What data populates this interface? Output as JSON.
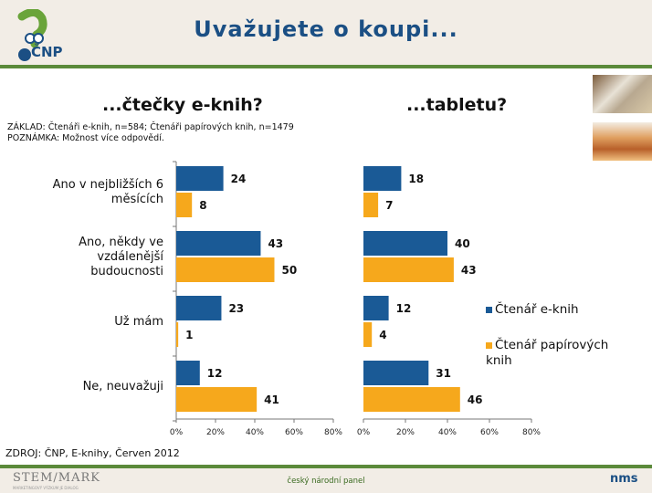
{
  "header": {
    "title": "Uvažujete o koupi...",
    "logo_text": "ČNP"
  },
  "notes": {
    "base": "ZÁKLAD: Čtenáři e-knih, n=584; Čtenáři papírových knih, n=1479",
    "remark": "POZNÁMKA: Možnost více odpovědí."
  },
  "source": "ZDROJ: ČNP, E-knihy, Červen 2012",
  "footer": {
    "left_logo": "STEM/MARK",
    "left_logo_sub": "MARKETINGOVÝ VÝZKUM JE DIALOG",
    "center": "český národní panel",
    "right_logo": "nms"
  },
  "colors": {
    "e_reader": "#1a5a96",
    "paper": "#f6a81c",
    "accent": "#5b8a3a",
    "header_bg": "#f2ede6"
  },
  "chart_data": [
    {
      "type": "bar",
      "orientation": "horizontal",
      "title": "...čtečky e-knih?",
      "categories": [
        "Ano v nejbližších 6 měsících",
        "Ano, někdy ve vzdálenější budoucnosti",
        "Už mám",
        "Ne, neuvažuji"
      ],
      "series": [
        {
          "name": "Čtenář e-knih",
          "values": [
            24,
            43,
            23,
            12
          ]
        },
        {
          "name": "Čtenář papírových knih",
          "values": [
            8,
            50,
            1,
            41
          ]
        }
      ],
      "xlim": [
        0,
        80
      ],
      "xticks": [
        "0%",
        "20%",
        "40%",
        "60%",
        "80%"
      ],
      "grid": false
    },
    {
      "type": "bar",
      "orientation": "horizontal",
      "title": "...tabletu?",
      "categories": [
        "Ano v nejbližších 6 měsících",
        "Ano, někdy ve vzdálenější budoucnosti",
        "Už mám",
        "Ne, neuvažuji"
      ],
      "series": [
        {
          "name": "Čtenář e-knih",
          "values": [
            18,
            40,
            12,
            31
          ]
        },
        {
          "name": "Čtenář papírových knih",
          "values": [
            7,
            43,
            4,
            46
          ]
        }
      ],
      "xlim": [
        0,
        80
      ],
      "xticks": [
        "0%",
        "20%",
        "40%",
        "60%",
        "80%"
      ],
      "grid": false,
      "legend": "right"
    }
  ]
}
